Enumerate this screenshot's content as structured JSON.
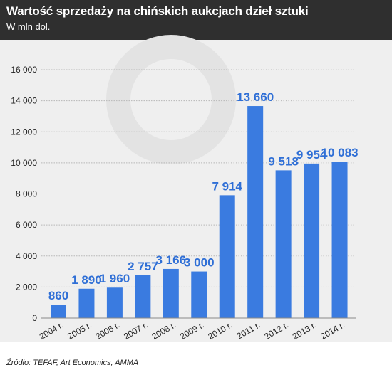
{
  "header": {
    "title": "Wartość sprzedaży na chińskich aukcjach dzieł sztuki",
    "subtitle": "W mln dol."
  },
  "footer": {
    "source": "Źródło: TEFAF, Art Economics, AMMA"
  },
  "colors": {
    "header_bg": "#2f2f2f",
    "plot_bg": "#efefef",
    "bar": "#3a7be0",
    "label": "#2f6fd6",
    "watermark": "#e2e2e2"
  },
  "chart_data": {
    "type": "bar",
    "categories": [
      "2004 r.",
      "2005 r.",
      "2006 r.",
      "2007 r.",
      "2008 r.",
      "2009 r.",
      "2010 r.",
      "2011 r.",
      "2012 r.",
      "2013 r.",
      "2014 r."
    ],
    "values": [
      860,
      1890,
      1960,
      2757,
      3166,
      3000,
      7914,
      13660,
      9518,
      9954,
      10083
    ],
    "value_labels": [
      "860",
      "1 890",
      "1 960",
      "2 757",
      "3 166",
      "3 000",
      "7 914",
      "13 660",
      "9 518",
      "9 954",
      "10 083"
    ],
    "yticks": [
      0,
      2000,
      4000,
      6000,
      8000,
      10000,
      12000,
      14000,
      16000
    ],
    "ytick_labels": [
      "0",
      "2 000",
      "4 000",
      "6 000",
      "8 000",
      "10 000",
      "12 000",
      "14 000",
      "16 000"
    ],
    "ylim": [
      0,
      16000
    ],
    "grid": true
  }
}
